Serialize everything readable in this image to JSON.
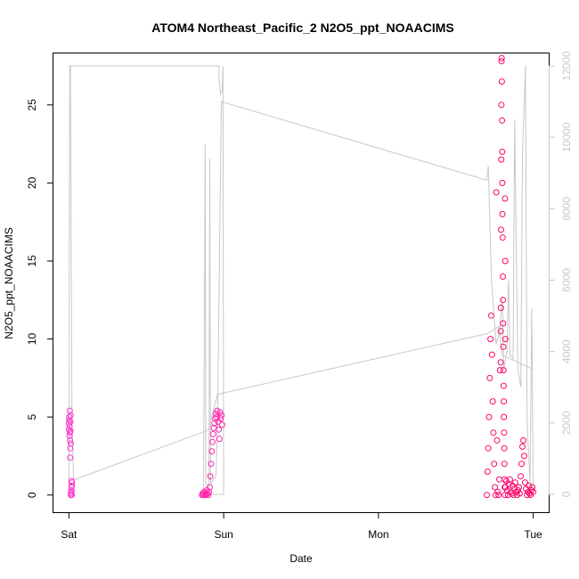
{
  "chart_data": {
    "type": "scatter",
    "title": "ATOM4 Northeast_Pacific_2 N2O5_ppt_NOAACIMS",
    "xlabel": "Date",
    "ylabel": "N2O5_ppt_NOAACIMS",
    "x_ticks": [
      "Sat",
      "Sun",
      "Mon",
      "Tue"
    ],
    "y_ticks": [
      0,
      5,
      10,
      15,
      20,
      25
    ],
    "y2_ticks": [
      0,
      2000,
      4000,
      6000,
      8000,
      10000,
      12000
    ],
    "xlim_days": [
      -0.1,
      3.1
    ],
    "ylim": [
      -1.1,
      28.3
    ],
    "y2lim": [
      -500,
      12350
    ],
    "grid": false,
    "colors": {
      "points_start": "#ff33cc",
      "points_end": "#ff0066",
      "altitude_line": "#c8c8c8",
      "axes": "#000000",
      "secondary_axis": "#c8c8c8"
    },
    "series": [
      {
        "kind": "points",
        "segments": [
          {
            "x_start": 0.0,
            "x_end": 0.02,
            "values": [
              4.2,
              4.6,
              5.0,
              4.8,
              3.8,
              4.4,
              5.4,
              4.0,
              3.5,
              2.4,
              3.0,
              4.7,
              4.1,
              5.1,
              3.3,
              0.0,
              0.1,
              0.2,
              0.5,
              0.9,
              0.3,
              0.0,
              0.6,
              0.8
            ]
          },
          {
            "x_start": 0.86,
            "x_end": 0.99,
            "values": [
              0.0,
              0.1,
              0.0,
              0.2,
              0.0,
              0.1,
              0.0,
              0.3,
              0.1,
              0.0,
              0.2,
              0.5,
              1.2,
              2.0,
              2.8,
              3.4,
              3.9,
              4.3,
              4.6,
              4.9,
              5.2,
              5.0,
              5.4,
              4.7,
              4.2,
              3.6,
              5.3,
              4.9,
              5.1,
              4.5
            ]
          },
          {
            "x_start": 2.7,
            "x_end": 2.79,
            "values": [
              0.0,
              1.5,
              3.0,
              5.0,
              7.5,
              10.0,
              11.5,
              9.0,
              6.0,
              4.0,
              2.0,
              0.5,
              0.0,
              19.4,
              3.5,
              0.2,
              0.0,
              1.0,
              8.0,
              10.5
            ]
          },
          {
            "x_start": 2.79,
            "x_end": 2.82,
            "values": [
              8.5,
              12.0,
              17.0,
              21.5,
              25.0,
              27.8,
              28.0,
              26.5,
              24.0,
              22.0,
              20.0,
              18.0,
              16.5,
              14.0,
              12.5,
              11.0,
              9.5,
              8.0,
              7.0,
              6.0,
              5.0,
              4.0,
              3.0,
              2.0,
              1.0,
              0.5,
              0.0,
              19.0,
              15.0,
              10.0
            ]
          },
          {
            "x_start": 2.82,
            "x_end": 3.0,
            "values": [
              0.5,
              0.9,
              0.3,
              0.0,
              0.7,
              1.0,
              0.2,
              0.1,
              0.6,
              0.0,
              0.4,
              0.8,
              0.2,
              0.0,
              0.3,
              0.5,
              0.1,
              1.2,
              2.0,
              3.1,
              3.5,
              2.5,
              0.8,
              0.4,
              0.0,
              0.2,
              0.6,
              0.1,
              0.0,
              0.3,
              0.5,
              0.2
            ]
          }
        ]
      },
      {
        "kind": "line",
        "axis": "secondary",
        "points": [
          [
            0.0,
            12000
          ],
          [
            0.01,
            12000
          ],
          [
            0.02,
            2000
          ],
          [
            0.03,
            400
          ],
          [
            0.9,
            1800
          ],
          [
            0.96,
            2800
          ],
          [
            2.7,
            4500
          ],
          [
            2.78,
            4700
          ],
          [
            2.8,
            3900
          ],
          [
            3.0,
            3500
          ]
        ],
        "profile": [
          [
            0.0,
            200
          ],
          [
            0.005,
            12000
          ],
          [
            0.97,
            12000
          ],
          [
            0.97,
            11600
          ],
          [
            0.98,
            11200
          ],
          [
            0.99,
            11300
          ],
          [
            0.995,
            12000
          ],
          [
            1.0,
            0
          ],
          [
            0.87,
            0
          ],
          [
            0.88,
            9800
          ],
          [
            0.885,
            300
          ],
          [
            0.905,
            200
          ],
          [
            0.91,
            9400
          ],
          [
            0.915,
            300
          ],
          [
            0.95,
            500
          ],
          [
            0.96,
            2000
          ],
          [
            0.985,
            11000
          ],
          [
            2.7,
            8800
          ],
          [
            2.71,
            9200
          ],
          [
            2.73,
            6000
          ],
          [
            2.76,
            4200
          ],
          [
            2.78,
            4500
          ],
          [
            2.8,
            5500
          ],
          [
            2.81,
            3500
          ],
          [
            2.83,
            4000
          ],
          [
            2.84,
            6000
          ],
          [
            2.85,
            3900
          ],
          [
            2.87,
            3800
          ],
          [
            2.88,
            10500
          ],
          [
            2.9,
            3500
          ],
          [
            2.92,
            3000
          ],
          [
            2.93,
            9500
          ],
          [
            2.95,
            12000
          ],
          [
            2.96,
            2000
          ],
          [
            2.98,
            300
          ],
          [
            2.99,
            5200
          ],
          [
            3.0,
            100
          ]
        ]
      }
    ]
  }
}
